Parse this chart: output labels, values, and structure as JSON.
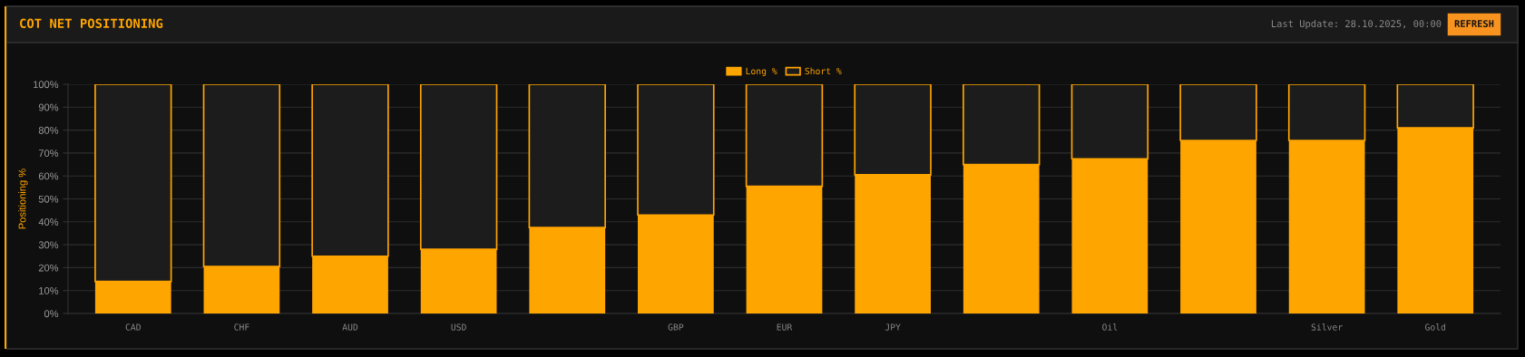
{
  "chart_data": {
    "type": "bar",
    "title": "COT NET POSITIONING",
    "ylabel": "Positioning %",
    "annotations": [
      "Last Update: 28.10.2025, 00:00",
      "REFRESH"
    ],
    "categories": [
      "CAD",
      "CHF",
      "AUD",
      "USD",
      null,
      "GBP",
      "EUR",
      "JPY",
      null,
      "Oil",
      null,
      "Silver",
      "Gold"
    ],
    "stacked": true,
    "series": [
      {
        "name": "Long %",
        "color": "#ffa500",
        "values": [
          14,
          20.5,
          25,
          28,
          37.5,
          43,
          55.5,
          60.5,
          65,
          67.5,
          75.5,
          75.5,
          81
        ]
      },
      {
        "name": "Short %",
        "color": "#1c1c1c",
        "values": [
          86,
          79.5,
          75,
          72,
          62.5,
          57,
          44.5,
          39.5,
          35,
          32.5,
          24.5,
          24.5,
          19
        ]
      }
    ],
    "ylim": [
      0,
      100
    ],
    "yticks": [
      {
        "value": 0,
        "label": "0%"
      },
      {
        "value": 10,
        "label": "10%"
      },
      {
        "value": 20,
        "label": "20%"
      },
      {
        "value": 30,
        "label": "30%"
      },
      {
        "value": 40,
        "label": "40%"
      },
      {
        "value": 50,
        "label": "50%"
      },
      {
        "value": 60,
        "label": "60%"
      },
      {
        "value": 70,
        "label": "70%"
      },
      {
        "value": 80,
        "label": "80%"
      },
      {
        "value": 90,
        "label": "90%"
      },
      {
        "value": 100,
        "label": "100%"
      }
    ],
    "grid": "y",
    "legend": "top"
  }
}
